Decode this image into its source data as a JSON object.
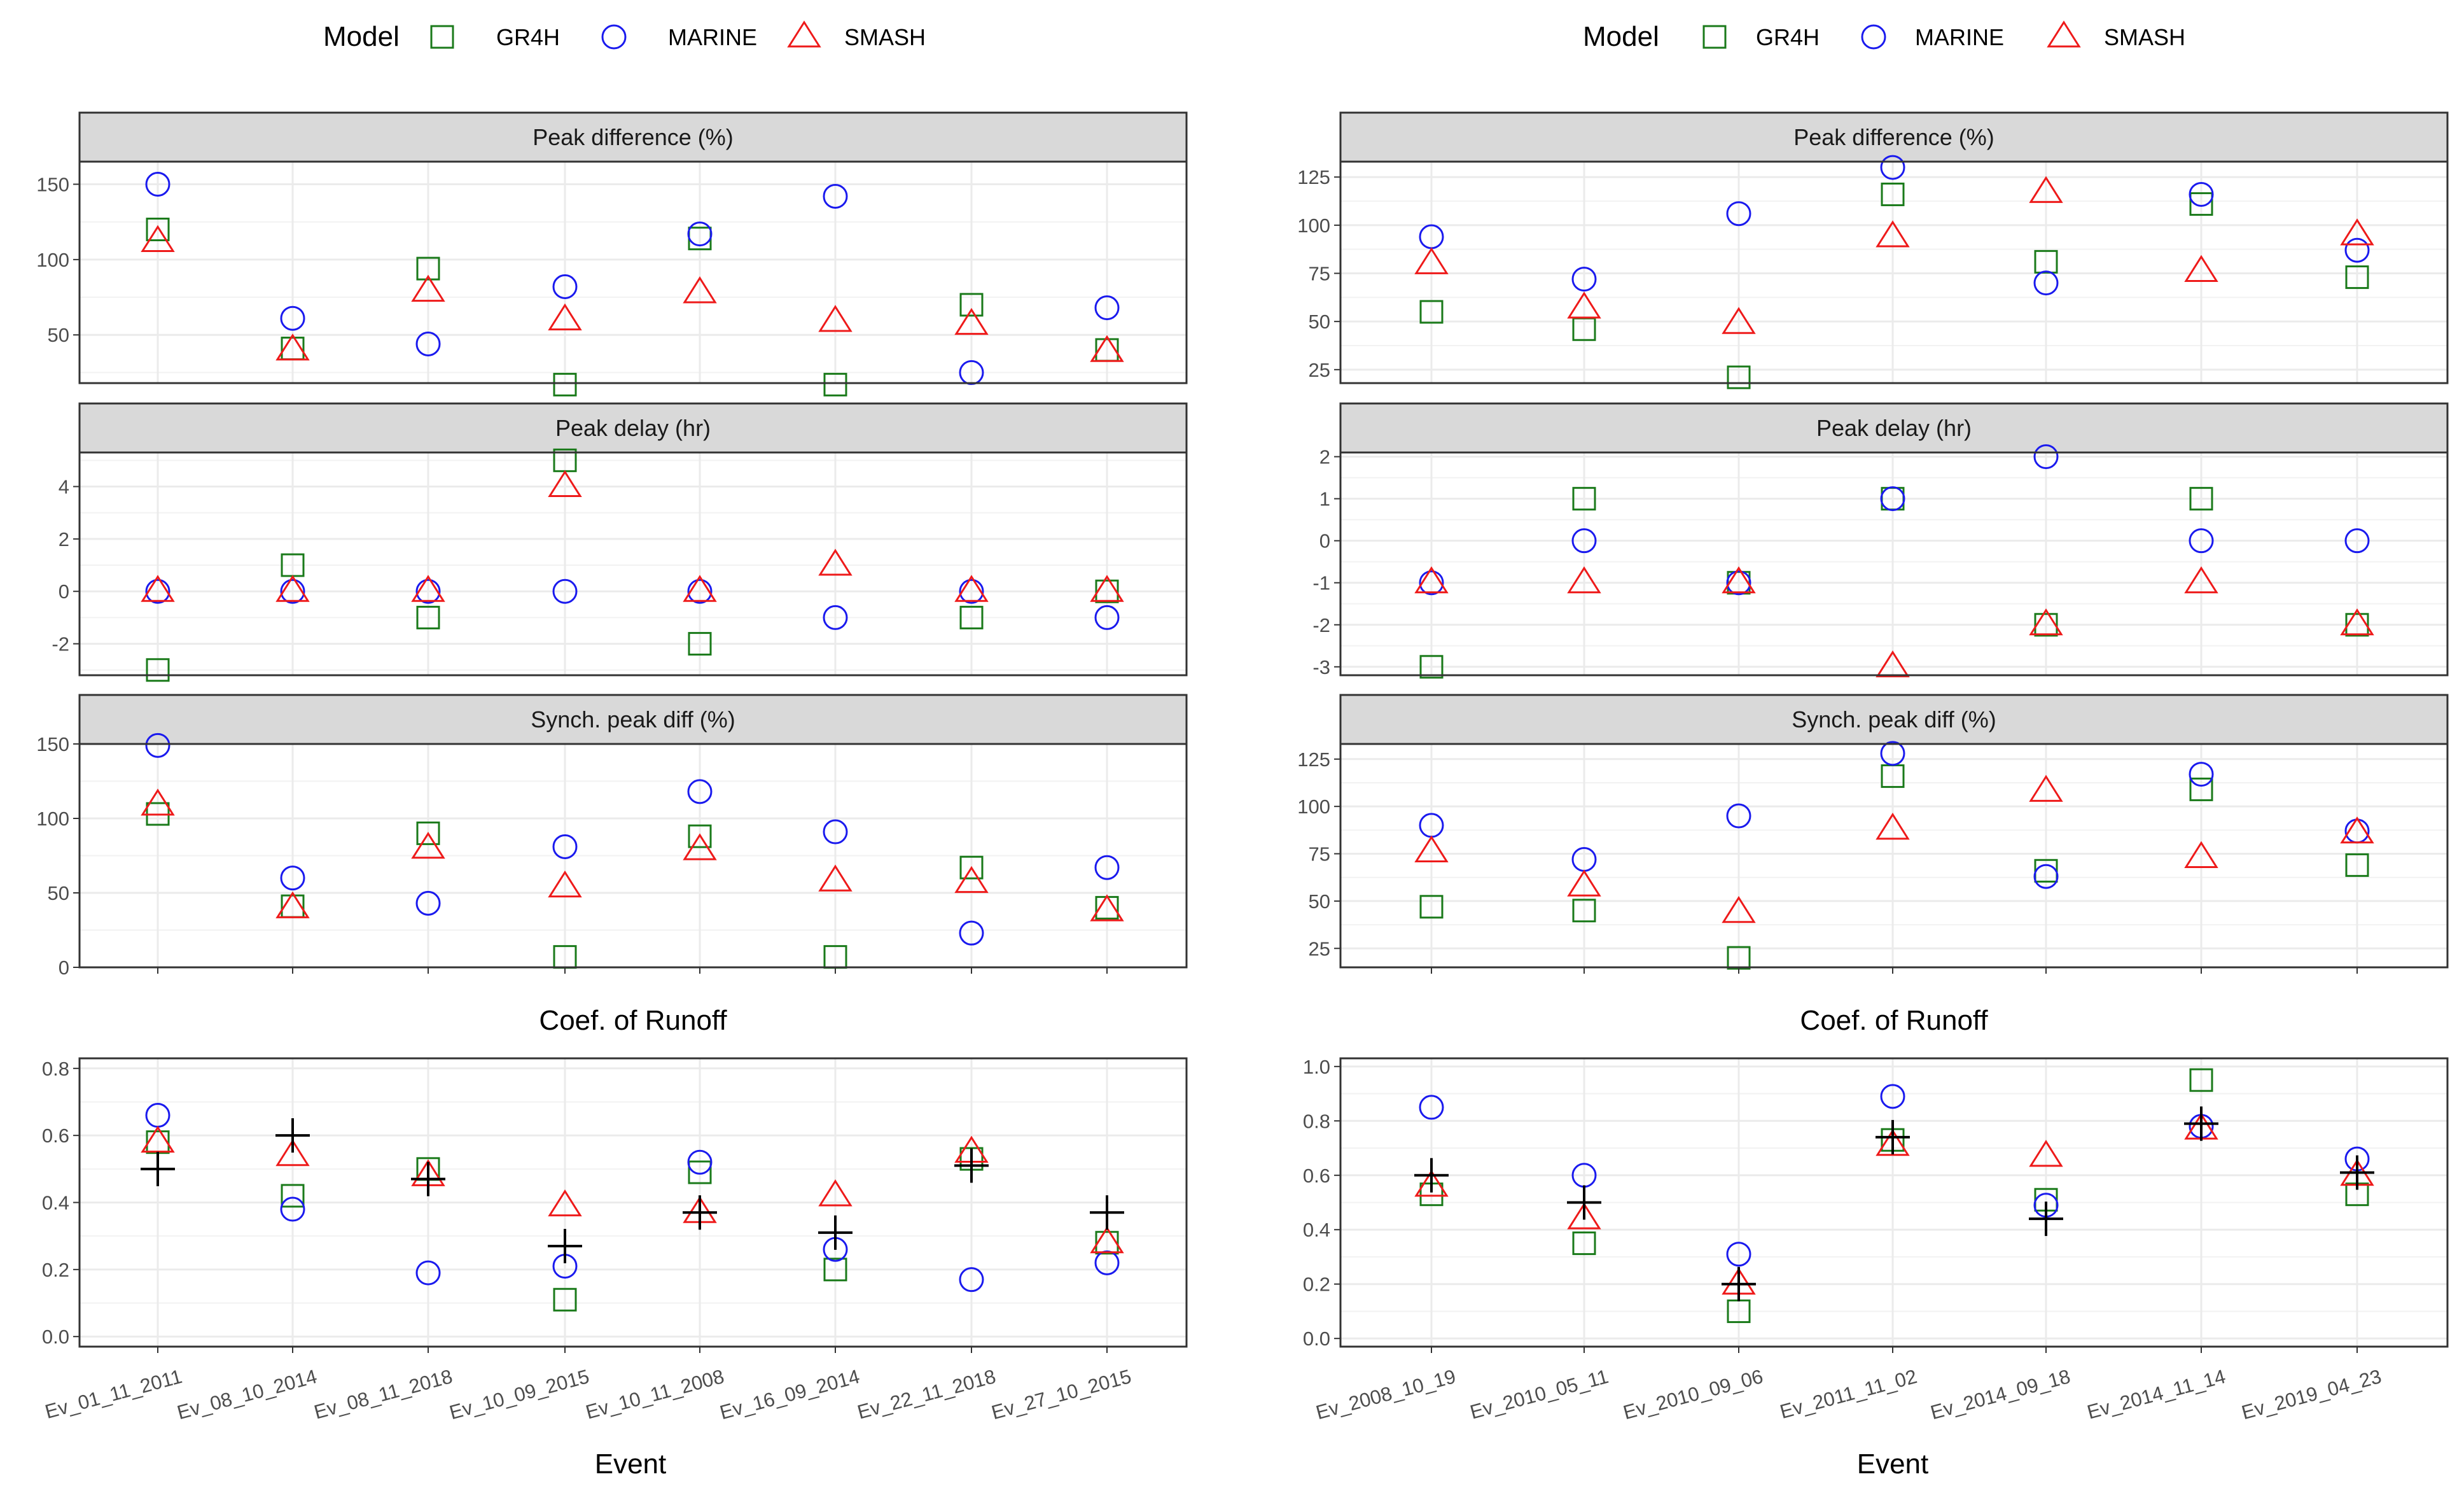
{
  "legend": {
    "title": "Model",
    "entries": [
      {
        "label": "GR4H",
        "shape": "square",
        "color": "#1a7a1a"
      },
      {
        "label": "MARINE",
        "shape": "circle",
        "color": "#1a1aee"
      },
      {
        "label": "SMASH",
        "shape": "triangle",
        "color": "#ee1a1a"
      }
    ],
    "observed_marker": "plus",
    "observed_color": "#000000"
  },
  "chart_data": [
    {
      "type": "scatter",
      "figure": "left",
      "x_axis_title": "Event",
      "categories": [
        "Ev_01_11_2011",
        "Ev_08_10_2014",
        "Ev_08_11_2018",
        "Ev_10_09_2015",
        "Ev_10_11_2008",
        "Ev_16_09_2014",
        "Ev_22_11_2018",
        "Ev_27_10_2015"
      ],
      "facets": [
        {
          "strip": "Peak difference (%)",
          "ylim": [
            18,
            165
          ],
          "yticks": [
            50,
            100,
            150
          ],
          "series": [
            {
              "name": "GR4H",
              "values": [
                120,
                41,
                94,
                17,
                114,
                17,
                70,
                40
              ]
            },
            {
              "name": "MARINE",
              "values": [
                150,
                61,
                44,
                82,
                117,
                142,
                25,
                68
              ]
            },
            {
              "name": "SMASH",
              "values": [
                112,
                40,
                79,
                60,
                78,
                59,
                57,
                39
              ]
            }
          ]
        },
        {
          "strip": "Peak delay (hr)",
          "ylim": [
            -3.2,
            5.3
          ],
          "yticks": [
            -2,
            0,
            2,
            4
          ],
          "series": [
            {
              "name": "GR4H",
              "values": [
                -3,
                1,
                -1,
                5,
                -2,
                null,
                -1,
                0
              ]
            },
            {
              "name": "MARINE",
              "values": [
                0,
                0,
                0,
                0,
                0,
                -1,
                0,
                -1
              ]
            },
            {
              "name": "SMASH",
              "values": [
                0,
                0,
                0,
                4,
                0,
                1,
                0,
                0
              ]
            }
          ]
        },
        {
          "strip": "Synch. peak diff (%)",
          "ylim": [
            0,
            150
          ],
          "yticks": [
            0,
            50,
            100,
            150
          ],
          "series": [
            {
              "name": "GR4H",
              "values": [
                103,
                41,
                90,
                7,
                88,
                7,
                67,
                40
              ]
            },
            {
              "name": "MARINE",
              "values": [
                149,
                60,
                43,
                81,
                118,
                91,
                23,
                67
              ]
            },
            {
              "name": "SMASH",
              "values": [
                109,
                40,
                80,
                54,
                79,
                58,
                57,
                38
              ]
            }
          ]
        }
      ],
      "runoff": {
        "title": "Coef. of Runoff",
        "ylim": [
          -0.03,
          0.83
        ],
        "yticks": [
          "0.0",
          "0.2",
          "0.4",
          "0.6",
          "0.8"
        ],
        "series": [
          {
            "name": "GR4H",
            "values": [
              0.58,
              0.42,
              0.5,
              0.11,
              0.49,
              0.2,
              0.53,
              0.28
            ]
          },
          {
            "name": "MARINE",
            "values": [
              0.66,
              0.38,
              0.19,
              0.21,
              0.52,
              0.26,
              0.17,
              0.22
            ]
          },
          {
            "name": "SMASH",
            "values": [
              0.58,
              0.54,
              0.48,
              0.39,
              0.37,
              0.42,
              0.55,
              0.28
            ]
          },
          {
            "name": "Observed",
            "values": [
              0.5,
              0.6,
              0.47,
              0.27,
              0.37,
              0.31,
              0.51,
              0.37
            ]
          }
        ]
      }
    },
    {
      "type": "scatter",
      "figure": "right",
      "x_axis_title": "Event",
      "categories": [
        "Ev_2008_10_19",
        "Ev_2010_05_11",
        "Ev_2010_09_06",
        "Ev_2011_11_02",
        "Ev_2014_09_18",
        "Ev_2014_11_14",
        "Ev_2019_04_23"
      ],
      "facets": [
        {
          "strip": "Peak difference (%)",
          "ylim": [
            18,
            133
          ],
          "yticks": [
            25,
            50,
            75,
            100,
            125
          ],
          "series": [
            {
              "name": "GR4H",
              "values": [
                55,
                46,
                21,
                116,
                81,
                111,
                73
              ]
            },
            {
              "name": "MARINE",
              "values": [
                94,
                72,
                106,
                130,
                70,
                116,
                87
              ]
            },
            {
              "name": "SMASH",
              "values": [
                80,
                57,
                49,
                94,
                117,
                76,
                95
              ]
            }
          ]
        },
        {
          "strip": "Peak delay (hr)",
          "ylim": [
            -3.2,
            2.1
          ],
          "yticks": [
            -3,
            -2,
            -1,
            0,
            1,
            2
          ],
          "series": [
            {
              "name": "GR4H",
              "values": [
                -3,
                1,
                -1,
                1,
                -2,
                1,
                -2
              ]
            },
            {
              "name": "MARINE",
              "values": [
                -1,
                0,
                -1,
                1,
                2,
                0,
                0
              ]
            },
            {
              "name": "SMASH",
              "values": [
                -1,
                -1,
                -1,
                -3,
                -2,
                -1,
                -2
              ]
            }
          ]
        },
        {
          "strip": "Synch. peak diff (%)",
          "ylim": [
            15,
            133
          ],
          "yticks": [
            25,
            50,
            75,
            100,
            125
          ],
          "series": [
            {
              "name": "GR4H",
              "values": [
                47,
                45,
                20,
                116,
                66,
                109,
                69
              ]
            },
            {
              "name": "MARINE",
              "values": [
                90,
                72,
                95,
                128,
                63,
                117,
                87
              ]
            },
            {
              "name": "SMASH",
              "values": [
                76,
                58,
                44,
                88,
                108,
                73,
                86
              ]
            }
          ]
        }
      ],
      "runoff": {
        "title": "Coef. of Runoff",
        "ylim": [
          -0.03,
          1.03
        ],
        "yticks": [
          "0.0",
          "0.2",
          "0.4",
          "0.6",
          "0.8",
          "1.0"
        ],
        "series": [
          {
            "name": "GR4H",
            "values": [
              0.53,
              0.35,
              0.1,
              0.73,
              0.51,
              0.95,
              0.53
            ]
          },
          {
            "name": "MARINE",
            "values": [
              0.85,
              0.6,
              0.31,
              0.89,
              0.49,
              0.78,
              0.66
            ]
          },
          {
            "name": "SMASH",
            "values": [
              0.56,
              0.44,
              0.2,
              0.71,
              0.67,
              0.77,
              0.6
            ]
          },
          {
            "name": "Observed",
            "values": [
              0.6,
              0.5,
              0.2,
              0.74,
              0.44,
              0.79,
              0.61
            ]
          }
        ]
      }
    }
  ]
}
